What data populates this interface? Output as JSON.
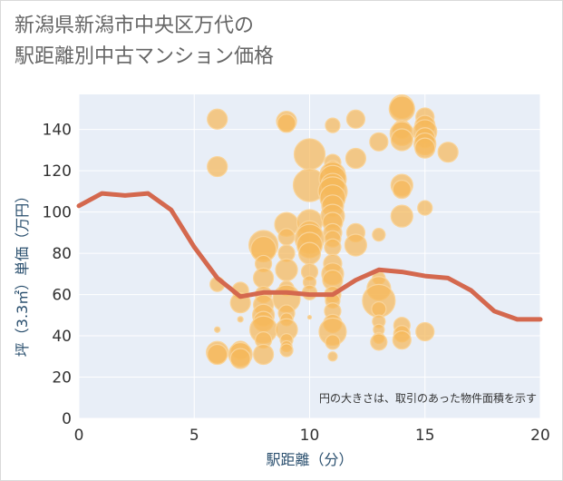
{
  "title_lines": [
    "新潟県新潟市中央区万代の",
    "駅距離別中古マンション価格"
  ],
  "chart_data": {
    "type": "scatter",
    "title": "新潟県新潟市中央区万代の駅距離別中古マンション価格",
    "xlabel": "駅距離（分）",
    "ylabel": "坪（3.3㎡）単価（万円）",
    "xlim": [
      0,
      20
    ],
    "ylim": [
      0,
      157
    ],
    "xticks": [
      0,
      5,
      10,
      15,
      20
    ],
    "yticks": [
      0,
      20,
      40,
      60,
      80,
      100,
      120,
      140
    ],
    "grid": true,
    "annotation": "円の大きさは、取引のあった物件面積を示す",
    "colors": {
      "bubble_fill": "#f5b95a",
      "bubble_edge": "#f9d49a",
      "line": "#d4684e",
      "plot_bg": "#e8eef7",
      "grid": "#ffffff"
    },
    "series": [
      {
        "type": "bubble",
        "points": [
          {
            "x": 6,
            "y": 145,
            "s": 11
          },
          {
            "x": 6,
            "y": 122,
            "s": 11
          },
          {
            "x": 6,
            "y": 65,
            "s": 8
          },
          {
            "x": 6,
            "y": 43,
            "s": 3
          },
          {
            "x": 6,
            "y": 32,
            "s": 12
          },
          {
            "x": 6,
            "y": 31,
            "s": 11
          },
          {
            "x": 7,
            "y": 62,
            "s": 9
          },
          {
            "x": 7,
            "y": 56,
            "s": 11
          },
          {
            "x": 7,
            "y": 48,
            "s": 3
          },
          {
            "x": 7,
            "y": 33,
            "s": 10
          },
          {
            "x": 7,
            "y": 31,
            "s": 13
          },
          {
            "x": 7,
            "y": 29,
            "s": 11
          },
          {
            "x": 8,
            "y": 84,
            "s": 16
          },
          {
            "x": 8,
            "y": 82,
            "s": 14
          },
          {
            "x": 8,
            "y": 75,
            "s": 9
          },
          {
            "x": 8,
            "y": 68,
            "s": 11
          },
          {
            "x": 8,
            "y": 60,
            "s": 9
          },
          {
            "x": 8,
            "y": 55,
            "s": 11
          },
          {
            "x": 8,
            "y": 50,
            "s": 12
          },
          {
            "x": 8,
            "y": 47,
            "s": 11
          },
          {
            "x": 8,
            "y": 43,
            "s": 15
          },
          {
            "x": 8,
            "y": 38,
            "s": 9
          },
          {
            "x": 8,
            "y": 31,
            "s": 11
          },
          {
            "x": 9,
            "y": 144,
            "s": 11
          },
          {
            "x": 9,
            "y": 143,
            "s": 10
          },
          {
            "x": 9,
            "y": 94,
            "s": 13
          },
          {
            "x": 9,
            "y": 88,
            "s": 9
          },
          {
            "x": 9,
            "y": 80,
            "s": 9
          },
          {
            "x": 9,
            "y": 72,
            "s": 12
          },
          {
            "x": 9,
            "y": 63,
            "s": 8
          },
          {
            "x": 9,
            "y": 58,
            "s": 15
          },
          {
            "x": 9,
            "y": 51,
            "s": 9
          },
          {
            "x": 9,
            "y": 48,
            "s": 7
          },
          {
            "x": 9,
            "y": 43,
            "s": 12
          },
          {
            "x": 9,
            "y": 38,
            "s": 7
          },
          {
            "x": 9,
            "y": 35,
            "s": 6
          },
          {
            "x": 9,
            "y": 33,
            "s": 7
          },
          {
            "x": 10,
            "y": 128,
            "s": 17
          },
          {
            "x": 10,
            "y": 113,
            "s": 18
          },
          {
            "x": 10,
            "y": 95,
            "s": 14
          },
          {
            "x": 10,
            "y": 90,
            "s": 13
          },
          {
            "x": 10,
            "y": 87,
            "s": 16
          },
          {
            "x": 10,
            "y": 84,
            "s": 14
          },
          {
            "x": 10,
            "y": 80,
            "s": 12
          },
          {
            "x": 10,
            "y": 71,
            "s": 9
          },
          {
            "x": 10,
            "y": 66,
            "s": 7
          },
          {
            "x": 10,
            "y": 61,
            "s": 8
          },
          {
            "x": 10,
            "y": 49,
            "s": 2
          },
          {
            "x": 11,
            "y": 142,
            "s": 8
          },
          {
            "x": 11,
            "y": 124,
            "s": 9
          },
          {
            "x": 11,
            "y": 121,
            "s": 9
          },
          {
            "x": 11,
            "y": 118,
            "s": 14
          },
          {
            "x": 11,
            "y": 116,
            "s": 15
          },
          {
            "x": 11,
            "y": 113,
            "s": 13
          },
          {
            "x": 11,
            "y": 110,
            "s": 16
          },
          {
            "x": 11,
            "y": 107,
            "s": 14
          },
          {
            "x": 11,
            "y": 103,
            "s": 12
          },
          {
            "x": 11,
            "y": 98,
            "s": 13
          },
          {
            "x": 11,
            "y": 95,
            "s": 11
          },
          {
            "x": 11,
            "y": 90,
            "s": 10
          },
          {
            "x": 11,
            "y": 87,
            "s": 9
          },
          {
            "x": 11,
            "y": 83,
            "s": 9
          },
          {
            "x": 11,
            "y": 75,
            "s": 10
          },
          {
            "x": 11,
            "y": 70,
            "s": 12
          },
          {
            "x": 11,
            "y": 67,
            "s": 11
          },
          {
            "x": 11,
            "y": 60,
            "s": 9
          },
          {
            "x": 11,
            "y": 57,
            "s": 8
          },
          {
            "x": 11,
            "y": 52,
            "s": 9
          },
          {
            "x": 11,
            "y": 46,
            "s": 10
          },
          {
            "x": 11,
            "y": 42,
            "s": 15
          },
          {
            "x": 11,
            "y": 37,
            "s": 8
          },
          {
            "x": 11,
            "y": 30,
            "s": 5
          },
          {
            "x": 12,
            "y": 145,
            "s": 10
          },
          {
            "x": 12,
            "y": 126,
            "s": 11
          },
          {
            "x": 12,
            "y": 90,
            "s": 10
          },
          {
            "x": 12,
            "y": 84,
            "s": 12
          },
          {
            "x": 13,
            "y": 134,
            "s": 10
          },
          {
            "x": 13,
            "y": 89,
            "s": 7
          },
          {
            "x": 13,
            "y": 68,
            "s": 7
          },
          {
            "x": 13,
            "y": 63,
            "s": 13
          },
          {
            "x": 13,
            "y": 57,
            "s": 18
          },
          {
            "x": 13,
            "y": 53,
            "s": 8
          },
          {
            "x": 13,
            "y": 47,
            "s": 7
          },
          {
            "x": 13,
            "y": 43,
            "s": 6
          },
          {
            "x": 13,
            "y": 39,
            "s": 6
          },
          {
            "x": 13,
            "y": 37,
            "s": 9
          },
          {
            "x": 14,
            "y": 151,
            "s": 13
          },
          {
            "x": 14,
            "y": 150,
            "s": 14
          },
          {
            "x": 14,
            "y": 140,
            "s": 10
          },
          {
            "x": 14,
            "y": 138,
            "s": 13
          },
          {
            "x": 14,
            "y": 135,
            "s": 12
          },
          {
            "x": 14,
            "y": 113,
            "s": 12
          },
          {
            "x": 14,
            "y": 111,
            "s": 10
          },
          {
            "x": 14,
            "y": 98,
            "s": 12
          },
          {
            "x": 14,
            "y": 45,
            "s": 9
          },
          {
            "x": 14,
            "y": 41,
            "s": 9
          },
          {
            "x": 14,
            "y": 38,
            "s": 10
          },
          {
            "x": 15,
            "y": 146,
            "s": 10
          },
          {
            "x": 15,
            "y": 142,
            "s": 11
          },
          {
            "x": 15,
            "y": 139,
            "s": 13
          },
          {
            "x": 15,
            "y": 136,
            "s": 11
          },
          {
            "x": 15,
            "y": 133,
            "s": 12
          },
          {
            "x": 15,
            "y": 131,
            "s": 11
          },
          {
            "x": 15,
            "y": 102,
            "s": 8
          },
          {
            "x": 15,
            "y": 42,
            "s": 10
          },
          {
            "x": 16,
            "y": 129,
            "s": 11
          }
        ]
      },
      {
        "type": "line",
        "points": [
          [
            0,
            103
          ],
          [
            1,
            109
          ],
          [
            2,
            108
          ],
          [
            3,
            109
          ],
          [
            4,
            101
          ],
          [
            5,
            83
          ],
          [
            6,
            68
          ],
          [
            7,
            59
          ],
          [
            8,
            61
          ],
          [
            9,
            61
          ],
          [
            10,
            60
          ],
          [
            11,
            60
          ],
          [
            12,
            67
          ],
          [
            13,
            72
          ],
          [
            14,
            71
          ],
          [
            15,
            69
          ],
          [
            16,
            68
          ],
          [
            17,
            62
          ],
          [
            18,
            52
          ],
          [
            19,
            48
          ],
          [
            20,
            48
          ]
        ]
      }
    ]
  }
}
